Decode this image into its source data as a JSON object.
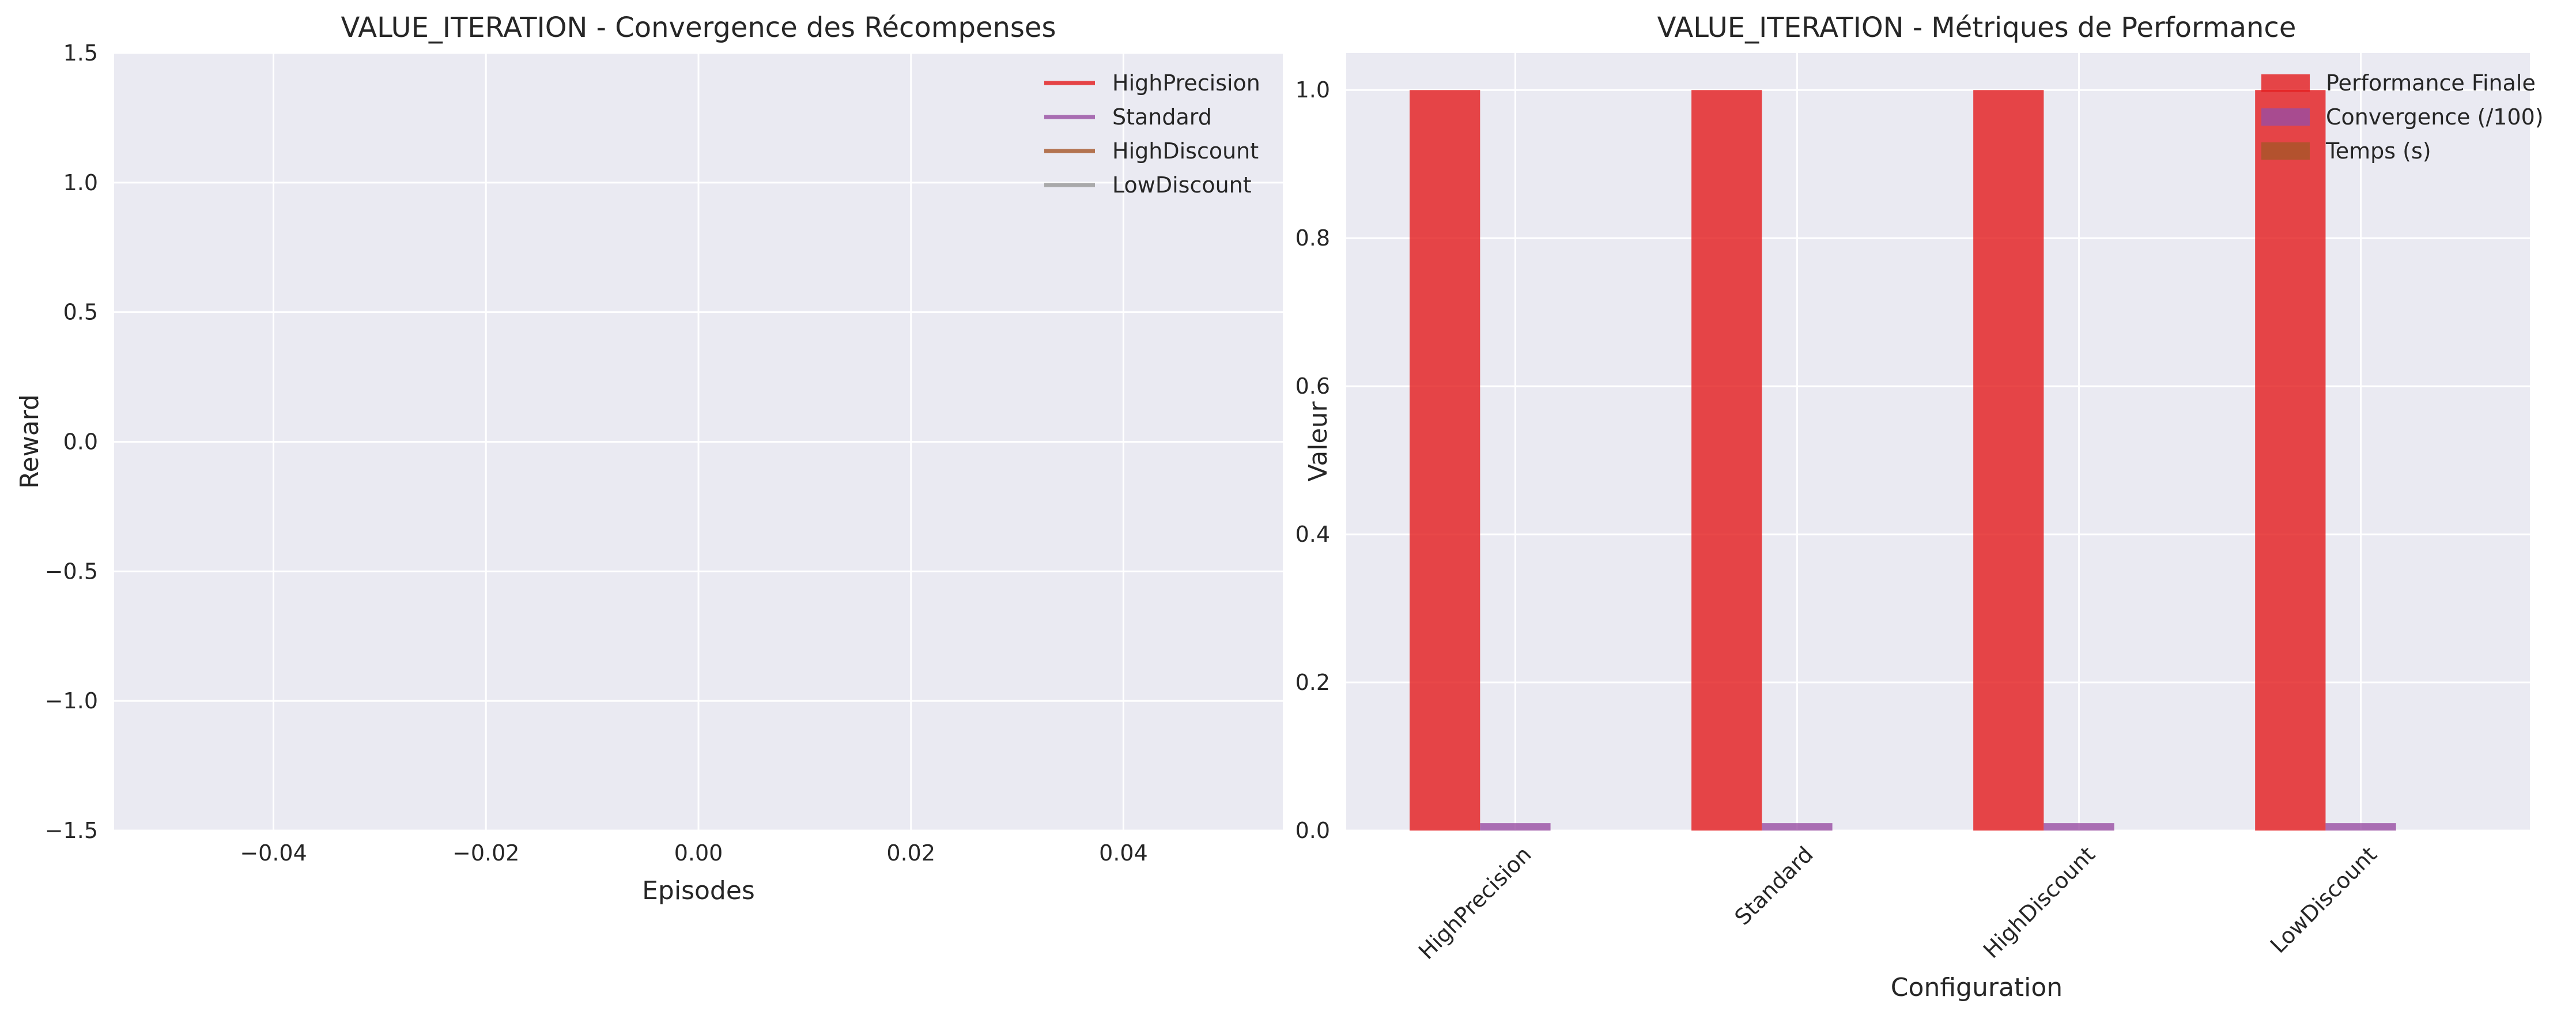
{
  "chart_data": [
    {
      "type": "line",
      "title": "VALUE_ITERATION - Convergence des Récompenses",
      "xlabel": "Episodes",
      "ylabel": "Reward",
      "xlim": [
        -0.055,
        0.055
      ],
      "ylim": [
        -1.5,
        1.5
      ],
      "xticks": [
        "−0.04",
        "−0.02",
        "0.00",
        "0.02",
        "0.04"
      ],
      "xtick_values": [
        -0.04,
        -0.02,
        0.0,
        0.02,
        0.04
      ],
      "yticks": [
        "1.5",
        "1.0",
        "0.5",
        "0.0",
        "−0.5",
        "−1.0",
        "−1.5"
      ],
      "ytick_values": [
        1.5,
        1.0,
        0.5,
        0.0,
        -0.5,
        -1.0,
        -1.5
      ],
      "grid": true,
      "legend_position": "top-right",
      "series": [
        {
          "name": "HighPrecision",
          "color": "#e41a1c",
          "x": [],
          "y": []
        },
        {
          "name": "Standard",
          "color": "#984ea3",
          "x": [],
          "y": []
        },
        {
          "name": "HighDiscount",
          "color": "#a65628",
          "x": [],
          "y": []
        },
        {
          "name": "LowDiscount",
          "color": "#999999",
          "x": [],
          "y": []
        }
      ]
    },
    {
      "type": "bar",
      "title": "VALUE_ITERATION - Métriques de Performance",
      "xlabel": "Configuration",
      "ylabel": "Valeur",
      "ylim": [
        0,
        1.05
      ],
      "yticks": [
        "1.0",
        "0.8",
        "0.6",
        "0.4",
        "0.2",
        "0.0"
      ],
      "ytick_values": [
        1.0,
        0.8,
        0.6,
        0.4,
        0.2,
        0.0
      ],
      "grid": true,
      "legend_position": "top-right",
      "categories": [
        "HighPrecision",
        "Standard",
        "HighDiscount",
        "LowDiscount"
      ],
      "series": [
        {
          "name": "Performance Finale",
          "color": "#e41a1c",
          "values": [
            1.0,
            1.0,
            1.0,
            1.0
          ]
        },
        {
          "name": "Convergence (/100)",
          "color": "#984ea3",
          "values": [
            0.01,
            0.01,
            0.01,
            0.01
          ]
        },
        {
          "name": "Temps (s)",
          "color": "#a65628",
          "values": [
            0.0,
            0.0,
            0.0,
            0.0
          ]
        }
      ]
    }
  ]
}
